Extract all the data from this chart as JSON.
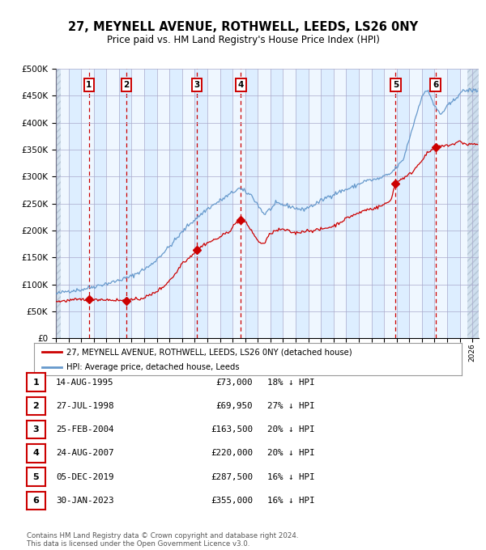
{
  "title1": "27, MEYNELL AVENUE, ROTHWELL, LEEDS, LS26 0NY",
  "title2": "Price paid vs. HM Land Registry's House Price Index (HPI)",
  "legend_label_red": "27, MEYNELL AVENUE, ROTHWELL, LEEDS, LS26 0NY (detached house)",
  "legend_label_blue": "HPI: Average price, detached house, Leeds",
  "footer1": "Contains HM Land Registry data © Crown copyright and database right 2024.",
  "footer2": "This data is licensed under the Open Government Licence v3.0.",
  "transactions": [
    {
      "num": 1,
      "date": "14-AUG-1995",
      "year": 1995.62,
      "price": 73000,
      "pct": "18% ↓ HPI"
    },
    {
      "num": 2,
      "date": "27-JUL-1998",
      "year": 1998.57,
      "price": 69950,
      "pct": "27% ↓ HPI"
    },
    {
      "num": 3,
      "date": "25-FEB-2004",
      "year": 2004.15,
      "price": 163500,
      "pct": "20% ↓ HPI"
    },
    {
      "num": 4,
      "date": "24-AUG-2007",
      "year": 2007.65,
      "price": 220000,
      "pct": "20% ↓ HPI"
    },
    {
      "num": 5,
      "date": "05-DEC-2019",
      "year": 2019.92,
      "price": 287500,
      "pct": "16% ↓ HPI"
    },
    {
      "num": 6,
      "date": "30-JAN-2023",
      "year": 2023.08,
      "price": 355000,
      "pct": "16% ↓ HPI"
    }
  ],
  "ylim": [
    0,
    500000
  ],
  "xlim_start": 1993.0,
  "xlim_end": 2026.5,
  "background_color": "#ffffff",
  "plot_bg_color": "#ddeeff",
  "grid_color": "#aaaacc",
  "red_line_color": "#cc0000",
  "blue_line_color": "#6699cc",
  "dashed_color": "#cc0000",
  "marker_color": "#cc0000"
}
